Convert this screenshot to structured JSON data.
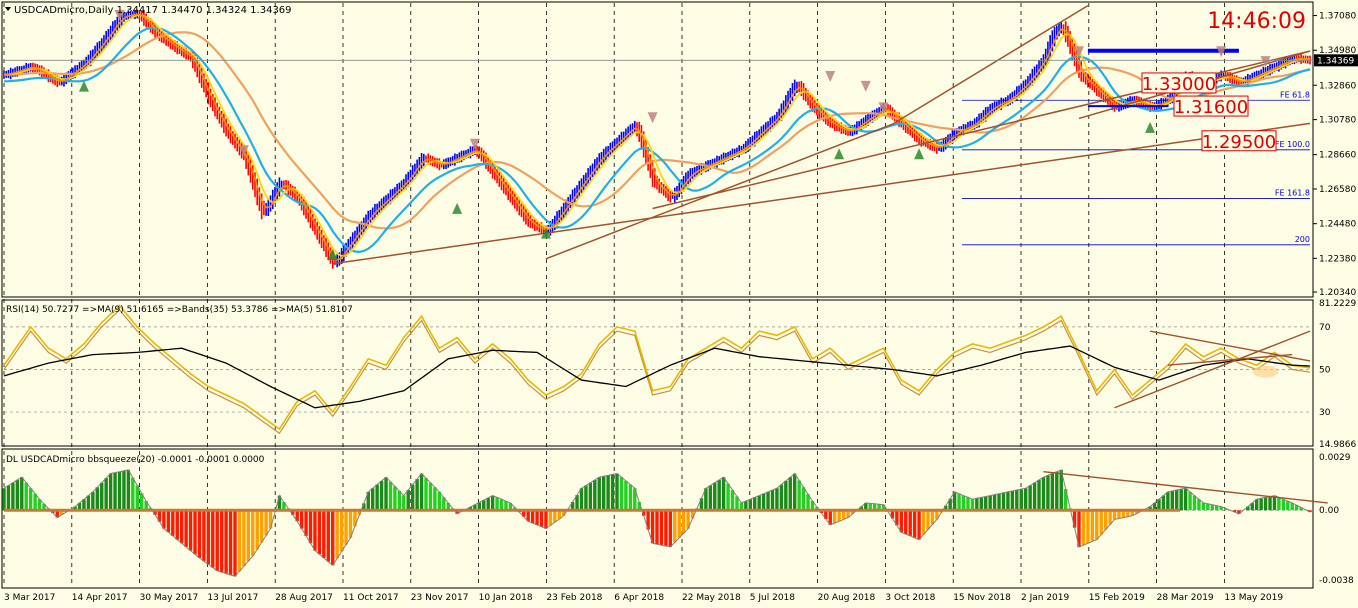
{
  "header": {
    "title": "USDCADmicro,Daily  1.34417 1.34470 1.34324 1.34369",
    "clock": "14:46:09"
  },
  "colors": {
    "background": "#fdfde6",
    "bull": "#0000ff",
    "bear": "#ff0000",
    "ma_fast": "#ff8c00",
    "ma_mid": "#ffd700",
    "ma_cyan": "#1fb0ea",
    "ma_slow": "#f0a060",
    "trend": "#a0522d",
    "rsi": "#e8b800",
    "rsi_ma": "#000000",
    "sq_green_dark": "#1a8a1a",
    "sq_green": "#22d022",
    "sq_red": "#ff1a00",
    "sq_orange": "#ffa000"
  },
  "chart_data": [
    {
      "type": "candlestick",
      "symbol": "USDCADmicro",
      "timeframe": "Daily",
      "ohlc_last": {
        "open": 1.34417,
        "high": 1.3447,
        "low": 1.34324,
        "close": 1.34369
      },
      "current_price_label": "1.34369",
      "y_ticks": [
        "1.37080",
        "1.34980",
        "1.32860",
        "1.30780",
        "1.28660",
        "1.26580",
        "1.24480",
        "1.22380",
        "1.20340"
      ],
      "x_ticks": [
        "3 Mar 2017",
        "14 Apr 2017",
        "30 May 2017",
        "13 Jul 2017",
        "28 Aug 2017",
        "11 Oct 2017",
        "23 Nov 2017",
        "10 Jan 2018",
        "23 Feb 2018",
        "6 Apr 2018",
        "22 May 2018",
        "5 Jul 2018",
        "20 Aug 2018",
        "3 Oct 2018",
        "15 Nov 2018",
        "2 Jan 2019",
        "15 Feb 2019",
        "28 Mar 2019",
        "13 May 2019"
      ],
      "price_path": [
        [
          0,
          1.335
        ],
        [
          3,
          1.34
        ],
        [
          6,
          1.33
        ],
        [
          9,
          1.342
        ],
        [
          11,
          1.355
        ],
        [
          13,
          1.37
        ],
        [
          15,
          1.372
        ],
        [
          17,
          1.36
        ],
        [
          19,
          1.352
        ],
        [
          21,
          1.345
        ],
        [
          23,
          1.32
        ],
        [
          25,
          1.3
        ],
        [
          27,
          1.285
        ],
        [
          29,
          1.25
        ],
        [
          31,
          1.27
        ],
        [
          33,
          1.26
        ],
        [
          35,
          1.24
        ],
        [
          37,
          1.22
        ],
        [
          39,
          1.235
        ],
        [
          41,
          1.25
        ],
        [
          43,
          1.26
        ],
        [
          45,
          1.27
        ],
        [
          47,
          1.285
        ],
        [
          49,
          1.28
        ],
        [
          51,
          1.285
        ],
        [
          53,
          1.29
        ],
        [
          55,
          1.275
        ],
        [
          57,
          1.26
        ],
        [
          59,
          1.245
        ],
        [
          61,
          1.24
        ],
        [
          63,
          1.255
        ],
        [
          65,
          1.27
        ],
        [
          67,
          1.285
        ],
        [
          69,
          1.295
        ],
        [
          71,
          1.305
        ],
        [
          73,
          1.27
        ],
        [
          75,
          1.26
        ],
        [
          77,
          1.275
        ],
        [
          79,
          1.28
        ],
        [
          81,
          1.285
        ],
        [
          83,
          1.29
        ],
        [
          85,
          1.3
        ],
        [
          87,
          1.31
        ],
        [
          89,
          1.33
        ],
        [
          91,
          1.315
        ],
        [
          93,
          1.305
        ],
        [
          95,
          1.3
        ],
        [
          97,
          1.308
        ],
        [
          99,
          1.315
        ],
        [
          101,
          1.305
        ],
        [
          103,
          1.295
        ],
        [
          105,
          1.29
        ],
        [
          107,
          1.3
        ],
        [
          109,
          1.305
        ],
        [
          111,
          1.315
        ],
        [
          113,
          1.32
        ],
        [
          115,
          1.33
        ],
        [
          117,
          1.345
        ],
        [
          118,
          1.36
        ],
        [
          119,
          1.365
        ],
        [
          120,
          1.35
        ],
        [
          121,
          1.335
        ],
        [
          123,
          1.325
        ],
        [
          125,
          1.315
        ],
        [
          127,
          1.32
        ],
        [
          129,
          1.315
        ],
        [
          131,
          1.32
        ],
        [
          133,
          1.335
        ],
        [
          135,
          1.33
        ],
        [
          137,
          1.335
        ],
        [
          139,
          1.33
        ],
        [
          141,
          1.335
        ],
        [
          143,
          1.34
        ],
        [
          145,
          1.345
        ],
        [
          147,
          1.3437
        ]
      ],
      "levels": [
        {
          "label": "1.33000",
          "price": 1.33
        },
        {
          "label": "1.31600",
          "price": 1.316
        },
        {
          "label": "1.29500",
          "price": 1.295
        }
      ],
      "fibo": [
        {
          "label": "FE 61.8",
          "price": 1.3195
        },
        {
          "label": "FE 100.0",
          "price": 1.2895
        },
        {
          "label": "FE 161.8",
          "price": 1.26
        },
        {
          "label": "200",
          "price": 1.232
        }
      ]
    },
    {
      "type": "line",
      "title": "RSI(14) 50.7277  =>MA(9) 51.6165  =>Bands(35) 53.3786  =>MA(5) 51.8107",
      "y_ticks": [
        "81.2229",
        "70",
        "50",
        "30",
        "14.9866"
      ],
      "ylim": [
        14.9866,
        81.2229
      ],
      "rsi": [
        [
          0,
          52
        ],
        [
          3,
          70
        ],
        [
          5,
          60
        ],
        [
          7,
          55
        ],
        [
          9,
          62
        ],
        [
          11,
          72
        ],
        [
          13,
          80
        ],
        [
          15,
          70
        ],
        [
          17,
          62
        ],
        [
          19,
          55
        ],
        [
          21,
          48
        ],
        [
          23,
          42
        ],
        [
          25,
          38
        ],
        [
          27,
          34
        ],
        [
          29,
          28
        ],
        [
          31,
          22
        ],
        [
          33,
          35
        ],
        [
          35,
          40
        ],
        [
          37,
          30
        ],
        [
          39,
          42
        ],
        [
          41,
          55
        ],
        [
          43,
          52
        ],
        [
          45,
          65
        ],
        [
          47,
          75
        ],
        [
          49,
          60
        ],
        [
          51,
          65
        ],
        [
          53,
          55
        ],
        [
          55,
          62
        ],
        [
          57,
          55
        ],
        [
          59,
          45
        ],
        [
          61,
          38
        ],
        [
          63,
          42
        ],
        [
          65,
          48
        ],
        [
          67,
          62
        ],
        [
          69,
          70
        ],
        [
          71,
          68
        ],
        [
          73,
          40
        ],
        [
          75,
          42
        ],
        [
          77,
          55
        ],
        [
          79,
          60
        ],
        [
          81,
          65
        ],
        [
          83,
          60
        ],
        [
          85,
          68
        ],
        [
          87,
          66
        ],
        [
          89,
          70
        ],
        [
          91,
          55
        ],
        [
          93,
          60
        ],
        [
          95,
          52
        ],
        [
          97,
          56
        ],
        [
          99,
          60
        ],
        [
          101,
          45
        ],
        [
          103,
          40
        ],
        [
          105,
          50
        ],
        [
          107,
          58
        ],
        [
          109,
          62
        ],
        [
          111,
          60
        ],
        [
          113,
          63
        ],
        [
          115,
          66
        ],
        [
          117,
          70
        ],
        [
          119,
          75
        ],
        [
          121,
          58
        ],
        [
          123,
          40
        ],
        [
          125,
          50
        ],
        [
          127,
          38
        ],
        [
          129,
          45
        ],
        [
          131,
          52
        ],
        [
          133,
          62
        ],
        [
          135,
          56
        ],
        [
          137,
          60
        ],
        [
          139,
          55
        ],
        [
          141,
          52
        ],
        [
          143,
          58
        ],
        [
          145,
          52
        ],
        [
          147,
          50.73
        ]
      ],
      "rsi_ma": [
        [
          0,
          47
        ],
        [
          5,
          53
        ],
        [
          10,
          57
        ],
        [
          15,
          58
        ],
        [
          20,
          60
        ],
        [
          25,
          53
        ],
        [
          30,
          42
        ],
        [
          35,
          32
        ],
        [
          40,
          35
        ],
        [
          45,
          40
        ],
        [
          50,
          55
        ],
        [
          55,
          59
        ],
        [
          60,
          58
        ],
        [
          65,
          45
        ],
        [
          70,
          42
        ],
        [
          75,
          52
        ],
        [
          80,
          60
        ],
        [
          85,
          56
        ],
        [
          90,
          54
        ],
        [
          95,
          52
        ],
        [
          100,
          50
        ],
        [
          105,
          47
        ],
        [
          110,
          52
        ],
        [
          115,
          58
        ],
        [
          120,
          61
        ],
        [
          125,
          51
        ],
        [
          130,
          45
        ],
        [
          135,
          52
        ],
        [
          140,
          55
        ],
        [
          145,
          52
        ],
        [
          147,
          51.6
        ]
      ]
    },
    {
      "type": "bar",
      "title": "DL USDCADmicro bbsqueeze(20) -0.0001 -0.0001 0.0000",
      "y_ticks": [
        "0.0029",
        "0.00",
        "-0.0038"
      ],
      "ylim": [
        -0.0038,
        0.0029
      ],
      "values": [
        [
          0,
          0.0012
        ],
        [
          2,
          0.0018
        ],
        [
          4,
          0.0006
        ],
        [
          6,
          -0.0004
        ],
        [
          8,
          0.0002
        ],
        [
          10,
          0.001
        ],
        [
          12,
          0.002
        ],
        [
          14,
          0.0022
        ],
        [
          16,
          0.0005
        ],
        [
          18,
          -0.001
        ],
        [
          20,
          -0.0018
        ],
        [
          22,
          -0.0026
        ],
        [
          24,
          -0.0033
        ],
        [
          26,
          -0.0036
        ],
        [
          28,
          -0.0025
        ],
        [
          30,
          -0.001
        ],
        [
          31,
          0.0008
        ],
        [
          33,
          -0.0006
        ],
        [
          35,
          -0.0022
        ],
        [
          37,
          -0.003
        ],
        [
          39,
          -0.0015
        ],
        [
          41,
          0.001
        ],
        [
          43,
          0.0018
        ],
        [
          45,
          0.0008
        ],
        [
          47,
          0.002
        ],
        [
          49,
          0.001
        ],
        [
          51,
          -0.0002
        ],
        [
          53,
          0.0003
        ],
        [
          55,
          0.0008
        ],
        [
          57,
          0.0004
        ],
        [
          59,
          -0.0006
        ],
        [
          61,
          -0.001
        ],
        [
          63,
          -0.0003
        ],
        [
          65,
          0.0012
        ],
        [
          67,
          0.0018
        ],
        [
          69,
          0.002
        ],
        [
          71,
          0.0012
        ],
        [
          73,
          -0.0018
        ],
        [
          75,
          -0.002
        ],
        [
          77,
          -0.001
        ],
        [
          79,
          0.0012
        ],
        [
          81,
          0.0018
        ],
        [
          83,
          0.0004
        ],
        [
          85,
          0.0008
        ],
        [
          87,
          0.0012
        ],
        [
          89,
          0.002
        ],
        [
          91,
          0.0005
        ],
        [
          93,
          -0.0008
        ],
        [
          95,
          -0.0004
        ],
        [
          97,
          0.0004
        ],
        [
          99,
          0.0003
        ],
        [
          101,
          -0.0012
        ],
        [
          103,
          -0.0016
        ],
        [
          105,
          -0.0005
        ],
        [
          107,
          0.001
        ],
        [
          109,
          0.0006
        ],
        [
          111,
          0.0008
        ],
        [
          113,
          0.001
        ],
        [
          115,
          0.0012
        ],
        [
          117,
          0.0018
        ],
        [
          119,
          0.0022
        ],
        [
          121,
          -0.002
        ],
        [
          123,
          -0.0016
        ],
        [
          125,
          -0.0005
        ],
        [
          127,
          -0.0003
        ],
        [
          129,
          0.0002
        ],
        [
          131,
          0.001
        ],
        [
          133,
          0.0012
        ],
        [
          135,
          0.0004
        ],
        [
          137,
          0.0002
        ],
        [
          139,
          -0.0002
        ],
        [
          141,
          0.0006
        ],
        [
          143,
          0.0008
        ],
        [
          145,
          0.0004
        ],
        [
          147,
          -0.0001
        ]
      ]
    }
  ]
}
